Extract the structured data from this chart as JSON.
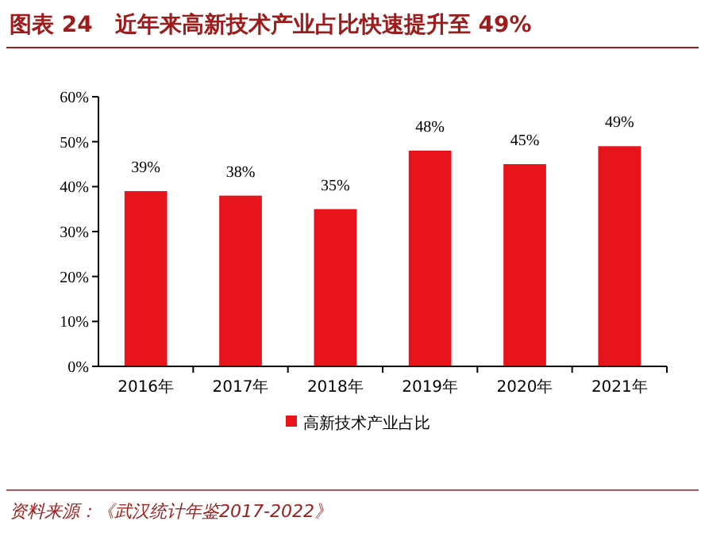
{
  "chart_data": {
    "type": "bar",
    "title": "图表 24　近年来高新技术产业占比快速提升至 49%",
    "categories": [
      "2016年",
      "2017年",
      "2018年",
      "2019年",
      "2020年",
      "2021年"
    ],
    "series": [
      {
        "name": "高新技术产业占比",
        "color": "#e8141b",
        "values": [
          39,
          38,
          35,
          48,
          45,
          49
        ],
        "value_labels": [
          "39%",
          "38%",
          "35%",
          "48%",
          "45%",
          "49%"
        ]
      }
    ],
    "ylim": [
      0,
      60
    ],
    "yticks": [
      {
        "value": 0,
        "label": "0%"
      },
      {
        "value": 10,
        "label": "10%"
      },
      {
        "value": 20,
        "label": "20%"
      },
      {
        "value": 30,
        "label": "30%"
      },
      {
        "value": 40,
        "label": "40%"
      },
      {
        "value": 50,
        "label": "50%"
      },
      {
        "value": 60,
        "label": "60%"
      }
    ],
    "legend": "bottom",
    "grid": false,
    "annotations": [
      "资料来源：《武汉统计年鉴2017-2022》"
    ]
  }
}
